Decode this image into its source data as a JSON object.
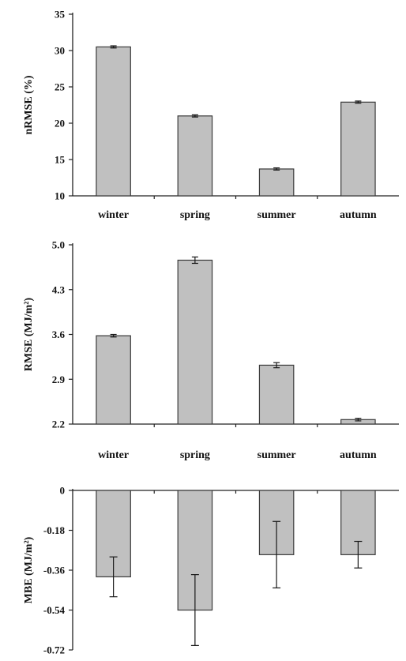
{
  "chart_data": [
    {
      "type": "bar",
      "categories": [
        "winter",
        "spring",
        "summer",
        "autumn"
      ],
      "values": [
        30.5,
        21.0,
        13.7,
        22.9
      ],
      "errors": [
        0.15,
        0.15,
        0.15,
        0.15
      ],
      "ylabel": "nRMSE (%)",
      "ylim": [
        10,
        35
      ],
      "yticks": [
        "10",
        "15",
        "20",
        "25",
        "30",
        "35"
      ],
      "xtick_position": "below-axis"
    },
    {
      "type": "bar",
      "categories": [
        "winter",
        "spring",
        "summer",
        "autumn"
      ],
      "values": [
        3.58,
        4.76,
        3.12,
        2.27
      ],
      "errors": [
        0.02,
        0.05,
        0.04,
        0.02
      ],
      "ylabel": "RMSE (MJ/m²)",
      "ylim": [
        2.2,
        5.0
      ],
      "yticks": [
        "2.2",
        "2.9",
        "3.6",
        "4.3",
        "5.0"
      ],
      "xtick_position": "below-axis"
    },
    {
      "type": "bar",
      "categories": [
        "winter",
        "spring",
        "summer",
        "autumn"
      ],
      "values": [
        -0.39,
        -0.54,
        -0.29,
        -0.29
      ],
      "errors": [
        0.09,
        0.16,
        0.15,
        0.06
      ],
      "ylabel": "MBE (MJ/m²)",
      "ylim": [
        -0.72,
        0
      ],
      "yticks": [
        "0",
        "-0.18",
        "-0.36",
        "-0.54",
        "-0.72"
      ],
      "xtick_position": "none"
    }
  ]
}
